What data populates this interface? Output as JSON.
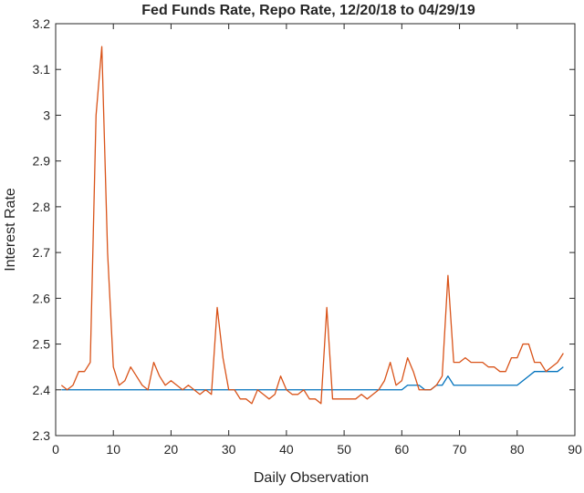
{
  "chart_data": {
    "type": "line",
    "title": "Fed Funds Rate, Repo Rate, 12/20/18 to 04/29/19",
    "xlabel": "Daily Observation",
    "ylabel": "Interest Rate",
    "xlim": [
      0,
      90
    ],
    "ylim": [
      2.3,
      3.2
    ],
    "xticks": [
      0,
      10,
      20,
      30,
      40,
      50,
      60,
      70,
      80,
      90
    ],
    "yticks": [
      2.3,
      2.4,
      2.5,
      2.6,
      2.7,
      2.8,
      2.9,
      3,
      3.1,
      3.2
    ],
    "ytick_labels": [
      "2.3",
      "2.4",
      "2.5",
      "2.6",
      "2.7",
      "2.8",
      "2.9",
      "3",
      "3.1",
      "3.2"
    ],
    "grid": false,
    "x": [
      1,
      2,
      3,
      4,
      5,
      6,
      7,
      8,
      9,
      10,
      11,
      12,
      13,
      14,
      15,
      16,
      17,
      18,
      19,
      20,
      21,
      22,
      23,
      24,
      25,
      26,
      27,
      28,
      29,
      30,
      31,
      32,
      33,
      34,
      35,
      36,
      37,
      38,
      39,
      40,
      41,
      42,
      43,
      44,
      45,
      46,
      47,
      48,
      49,
      50,
      51,
      52,
      53,
      54,
      55,
      56,
      57,
      58,
      59,
      60,
      61,
      62,
      63,
      64,
      65,
      66,
      67,
      68,
      69,
      70,
      71,
      72,
      73,
      74,
      75,
      76,
      77,
      78,
      79,
      80,
      81,
      82,
      83,
      84,
      85,
      86,
      87,
      88
    ],
    "series": [
      {
        "color": "#0072BD",
        "values": [
          2.4,
          2.4,
          2.4,
          2.4,
          2.4,
          2.4,
          2.4,
          2.4,
          2.4,
          2.4,
          2.4,
          2.4,
          2.4,
          2.4,
          2.4,
          2.4,
          2.4,
          2.4,
          2.4,
          2.4,
          2.4,
          2.4,
          2.4,
          2.4,
          2.4,
          2.4,
          2.4,
          2.4,
          2.4,
          2.4,
          2.4,
          2.4,
          2.4,
          2.4,
          2.4,
          2.4,
          2.4,
          2.4,
          2.4,
          2.4,
          2.4,
          2.4,
          2.4,
          2.4,
          2.4,
          2.4,
          2.4,
          2.4,
          2.4,
          2.4,
          2.4,
          2.4,
          2.4,
          2.4,
          2.4,
          2.4,
          2.4,
          2.4,
          2.4,
          2.4,
          2.41,
          2.41,
          2.41,
          2.4,
          2.4,
          2.41,
          2.41,
          2.43,
          2.41,
          2.41,
          2.41,
          2.41,
          2.41,
          2.41,
          2.41,
          2.41,
          2.41,
          2.41,
          2.41,
          2.41,
          2.42,
          2.43,
          2.44,
          2.44,
          2.44,
          2.44,
          2.44,
          2.45
        ]
      },
      {
        "color": "#D95319",
        "values": [
          2.41,
          2.4,
          2.41,
          2.44,
          2.44,
          2.46,
          3.0,
          3.15,
          2.7,
          2.45,
          2.41,
          2.42,
          2.45,
          2.43,
          2.41,
          2.4,
          2.46,
          2.43,
          2.41,
          2.42,
          2.41,
          2.4,
          2.41,
          2.4,
          2.39,
          2.4,
          2.39,
          2.58,
          2.47,
          2.4,
          2.4,
          2.38,
          2.38,
          2.37,
          2.4,
          2.39,
          2.38,
          2.39,
          2.43,
          2.4,
          2.39,
          2.39,
          2.4,
          2.38,
          2.38,
          2.37,
          2.58,
          2.38,
          2.38,
          2.38,
          2.38,
          2.38,
          2.39,
          2.38,
          2.39,
          2.4,
          2.42,
          2.46,
          2.41,
          2.42,
          2.47,
          2.44,
          2.4,
          2.4,
          2.4,
          2.41,
          2.43,
          2.65,
          2.46,
          2.46,
          2.47,
          2.46,
          2.46,
          2.46,
          2.45,
          2.45,
          2.44,
          2.44,
          2.47,
          2.47,
          2.5,
          2.5,
          2.46,
          2.46,
          2.44,
          2.45,
          2.46,
          2.48
        ]
      }
    ]
  }
}
